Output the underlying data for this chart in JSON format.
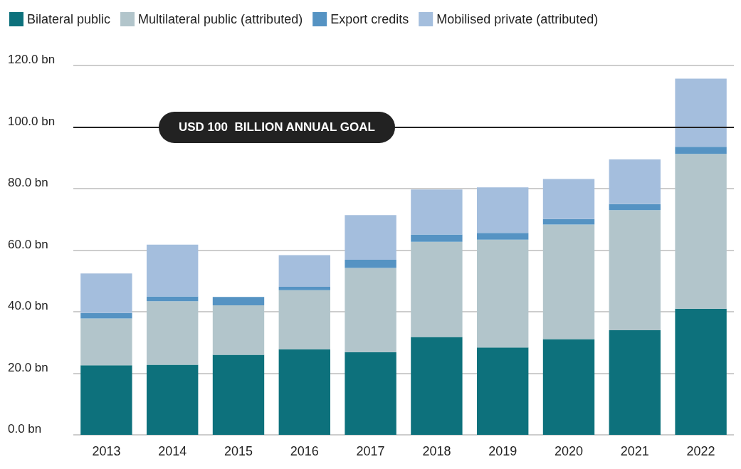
{
  "chart_data": {
    "type": "bar",
    "stacked": true,
    "categories": [
      "2013",
      "2014",
      "2015",
      "2016",
      "2017",
      "2018",
      "2019",
      "2020",
      "2021",
      "2022"
    ],
    "series": [
      {
        "name": "Bilateral public",
        "color": "#0d717c",
        "values": [
          22.6,
          22.8,
          26.0,
          27.8,
          26.9,
          31.8,
          28.4,
          31.1,
          34.0,
          41.0
        ]
      },
      {
        "name": "Multilateral public (attributed)",
        "color": "#b2c5cb",
        "values": [
          15.2,
          20.6,
          16.1,
          19.2,
          27.3,
          30.9,
          35.0,
          37.2,
          39.0,
          50.3
        ]
      },
      {
        "name": "Export credits",
        "color": "#5593c3",
        "values": [
          1.8,
          1.6,
          2.7,
          1.1,
          2.7,
          2.4,
          2.2,
          1.8,
          2.0,
          2.3
        ]
      },
      {
        "name": "Mobilised private (attributed)",
        "color": "#a4bedd",
        "values": [
          12.8,
          16.8,
          null,
          10.3,
          14.5,
          14.6,
          14.8,
          13.0,
          14.5,
          22.1
        ]
      }
    ],
    "ylim": [
      0,
      120
    ],
    "yticks": [
      {
        "value": 0,
        "label": "0.0 bn"
      },
      {
        "value": 20,
        "label": "20.0 bn"
      },
      {
        "value": 40,
        "label": "40.0 bn"
      },
      {
        "value": 60,
        "label": "60.0 bn"
      },
      {
        "value": 80,
        "label": "80.0 bn"
      },
      {
        "value": 100,
        "label": "100.0 bn"
      },
      {
        "value": 120,
        "label": "120.0 bn"
      }
    ],
    "grid": "y",
    "legend": "top left",
    "ref_lines": [
      {
        "axis": "y",
        "value": 100,
        "label": "USD 100  BILLION ANNUAL GOAL",
        "color": "#222222"
      }
    ]
  }
}
